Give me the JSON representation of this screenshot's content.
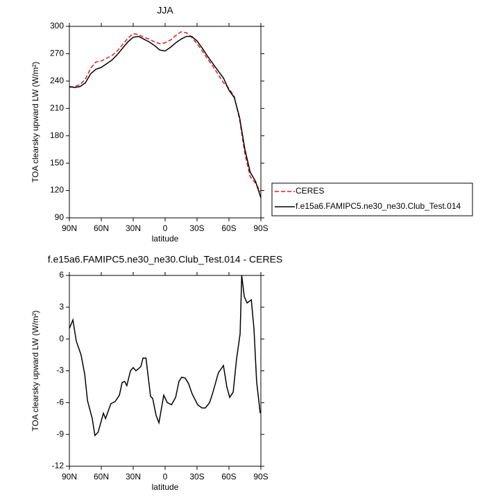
{
  "chart_data": [
    {
      "type": "line",
      "title": "JJA",
      "xlabel": "latitude",
      "ylabel": "TOA clearsky upward LW (W/m²)",
      "x": [
        90,
        85,
        80,
        75,
        70,
        65,
        60,
        55,
        50,
        45,
        40,
        35,
        30,
        25,
        20,
        15,
        10,
        5,
        0,
        -5,
        -10,
        -15,
        -20,
        -25,
        -30,
        -35,
        -40,
        -45,
        -50,
        -55,
        -60,
        -65,
        -70,
        -75,
        -80,
        -85,
        -90
      ],
      "series": [
        {
          "name": "CERES",
          "color": "#e31a1c",
          "linestyle": "dashed",
          "values": [
            233,
            234,
            236,
            242,
            254,
            261,
            262,
            265,
            268,
            273,
            280,
            287,
            292,
            291,
            288,
            286,
            283,
            281,
            282,
            285,
            290,
            294,
            293,
            288,
            281,
            273,
            264,
            256,
            247,
            238,
            232,
            223,
            198,
            160,
            135,
            128,
            118
          ]
        },
        {
          "name": "f.e15a6.FAMIPC5.ne30_ne30.Club_Test.014",
          "color": "#000000",
          "linestyle": "solid",
          "values": [
            234,
            233,
            234,
            238,
            248,
            253,
            255,
            259,
            263,
            269,
            276,
            283,
            288,
            289,
            286,
            283,
            279,
            274,
            273,
            277,
            282,
            286,
            289,
            289,
            284,
            276,
            267,
            259,
            251,
            243,
            230,
            222,
            200,
            165,
            140,
            130,
            112
          ]
        }
      ],
      "xlim": [
        90,
        -90
      ],
      "xticks": [
        {
          "value": 90,
          "label": "90N"
        },
        {
          "value": 60,
          "label": "60N"
        },
        {
          "value": 30,
          "label": "30N"
        },
        0,
        {
          "value": -30,
          "label": "30S"
        },
        {
          "value": -60,
          "label": "60S"
        },
        {
          "value": -90,
          "label": "90S"
        }
      ],
      "ylim": [
        90,
        300
      ],
      "yticks": [
        90,
        120,
        150,
        180,
        210,
        240,
        270,
        300
      ],
      "legend": "right"
    },
    {
      "type": "line",
      "title": "f.e15a6.FAMIPC5.ne30_ne30.Club_Test.014 - CERES",
      "xlabel": "latitude",
      "ylabel": "TOA clearsky upward LW (W/m²)",
      "x": [
        90,
        86.7,
        83.5,
        79,
        75.6,
        73,
        68.5,
        66,
        63,
        58,
        56,
        51,
        47,
        43,
        40.4,
        38,
        36,
        32.6,
        30,
        27.4,
        22.8,
        20.8,
        18,
        13.7,
        11.7,
        8.5,
        5.8,
        1.3,
        -2,
        -6,
        -9.9,
        -13,
        -15.6,
        -19,
        -22,
        -25.5,
        -30.6,
        -34.6,
        -37.8,
        -41.8,
        -45,
        -50,
        -54.8,
        -58,
        -60.7,
        -64,
        -67,
        -70.5,
        -72,
        -74.4,
        -77,
        -81,
        -83.5,
        -86,
        -89.4
      ],
      "values": [
        1,
        1.8,
        -0.2,
        -1.5,
        -3.3,
        -5.8,
        -7.5,
        -9.1,
        -8.8,
        -7,
        -7.5,
        -6.1,
        -5.9,
        -5.3,
        -4.1,
        -4,
        -4.4,
        -3,
        -2.7,
        -3,
        -2.6,
        -1.8,
        -1.8,
        -5.4,
        -5.6,
        -7.2,
        -7.9,
        -5.3,
        -6,
        -6.2,
        -5.5,
        -4,
        -3.6,
        -3.7,
        -4.2,
        -5.2,
        -6.2,
        -6.5,
        -6.5,
        -6,
        -5,
        -3.2,
        -2.5,
        -4.5,
        -5.5,
        -5,
        -2,
        0.5,
        6,
        4,
        3.4,
        3.7,
        1,
        -4,
        -7
      ],
      "color": "#000000",
      "xlim": [
        90,
        -90
      ],
      "xticks": [
        {
          "value": 90,
          "label": "90N"
        },
        {
          "value": 60,
          "label": "60N"
        },
        {
          "value": 30,
          "label": "30N"
        },
        0,
        {
          "value": -30,
          "label": "30S"
        },
        {
          "value": -60,
          "label": "60S"
        },
        {
          "value": -90,
          "label": "90S"
        }
      ],
      "ylim": [
        -12,
        6
      ],
      "yticks": [
        -12,
        -9,
        -6,
        -3,
        0,
        3,
        6
      ]
    }
  ]
}
